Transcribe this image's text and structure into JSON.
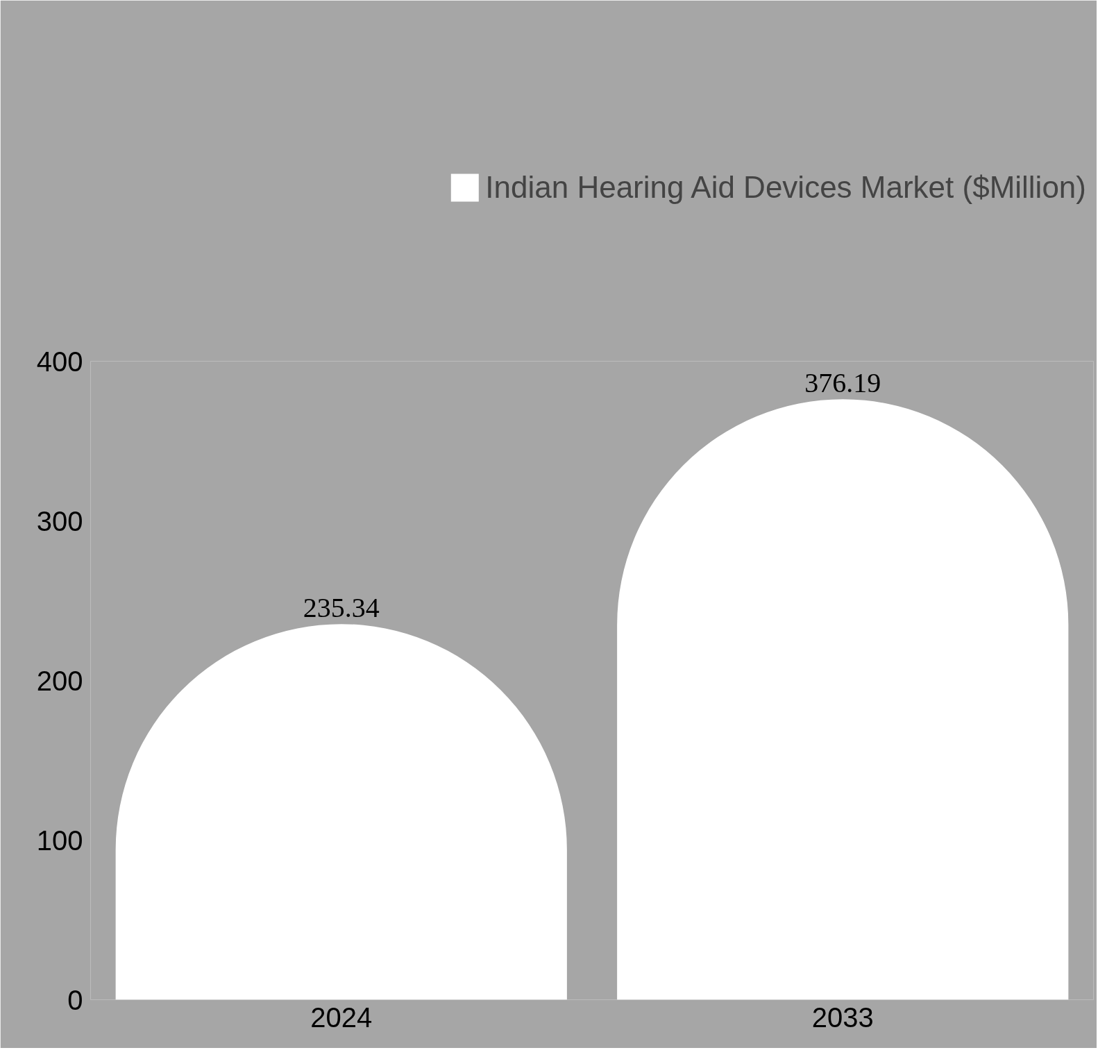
{
  "chart_data": {
    "type": "bar",
    "categories": [
      "2024",
      "2033"
    ],
    "series": [
      {
        "name": "Indian Hearing Aid Devices Market ($Million)",
        "color": "#ffffff",
        "values": [
          235.34,
          376.19
        ]
      }
    ],
    "ylim": [
      0,
      400
    ],
    "yticks": [
      0,
      100,
      200,
      300,
      400
    ],
    "grid": false,
    "legend": "top",
    "data_labels": true
  }
}
